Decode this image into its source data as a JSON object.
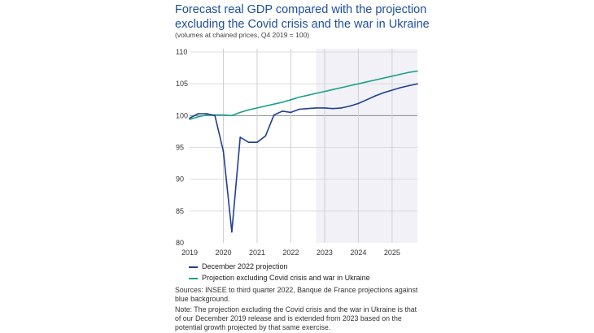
{
  "title": "Forecast real GDP compared with the projection excluding the Covid crisis and the war in Ukraine",
  "subtitle": "(volumes at chained prices, Q4 2019 = 100)",
  "sources": "Sources: INSEE to third quarter 2022, Banque de France projections against blue background.",
  "note": "Note: The projection excluding the Covid crisis and the war in Ukraine is that of our December 2019 release and is extended from 2023 based on the potential growth projected by that same exercise.",
  "chart_data": {
    "type": "line",
    "title": "Forecast real GDP compared with the projection excluding the Covid crisis and the war in Ukraine",
    "xlabel": "",
    "ylabel": "",
    "ylim": [
      80,
      110
    ],
    "xlim": [
      2019,
      2025.75
    ],
    "yticks": [
      "80",
      "85",
      "90",
      "95",
      "100",
      "105",
      "110"
    ],
    "xticks": [
      "2019",
      "2020",
      "2021",
      "2022",
      "2023",
      "2024",
      "2025"
    ],
    "grid": true,
    "legend_position": "bottom",
    "shaded_region": {
      "from": 2022.75,
      "to": 2025.75,
      "label": "Banque de France projections",
      "color": "#f1f1f7"
    },
    "x": [
      2019,
      2019.25,
      2019.5,
      2019.75,
      2020,
      2020.25,
      2020.5,
      2020.75,
      2021,
      2021.25,
      2021.5,
      2021.75,
      2022,
      2022.25,
      2022.5,
      2022.75,
      2023,
      2023.25,
      2023.5,
      2023.75,
      2024,
      2024.25,
      2024.5,
      2024.75,
      2025,
      2025.25,
      2025.5,
      2025.75
    ],
    "series": [
      {
        "name": "December 2022 projection",
        "color": "#1f3f95",
        "values": [
          99.6,
          100.3,
          100.3,
          100.0,
          94.4,
          81.7,
          96.6,
          95.8,
          95.8,
          96.8,
          100.1,
          100.7,
          100.5,
          101.0,
          101.1,
          101.2,
          101.2,
          101.1,
          101.2,
          101.5,
          101.9,
          102.5,
          103.1,
          103.6,
          104.0,
          104.4,
          104.7,
          105.0
        ]
      },
      {
        "name": "Projection excluding Covid crisis and war in Ukraine",
        "color": "#1aa187",
        "values": [
          99.4,
          99.8,
          100.1,
          100.1,
          100.1,
          100.0,
          100.5,
          100.9,
          101.2,
          101.5,
          101.8,
          102.1,
          102.5,
          102.9,
          103.2,
          103.5,
          103.8,
          104.1,
          104.4,
          104.7,
          105.0,
          105.3,
          105.6,
          105.9,
          106.2,
          106.5,
          106.8,
          107.0
        ]
      }
    ]
  }
}
